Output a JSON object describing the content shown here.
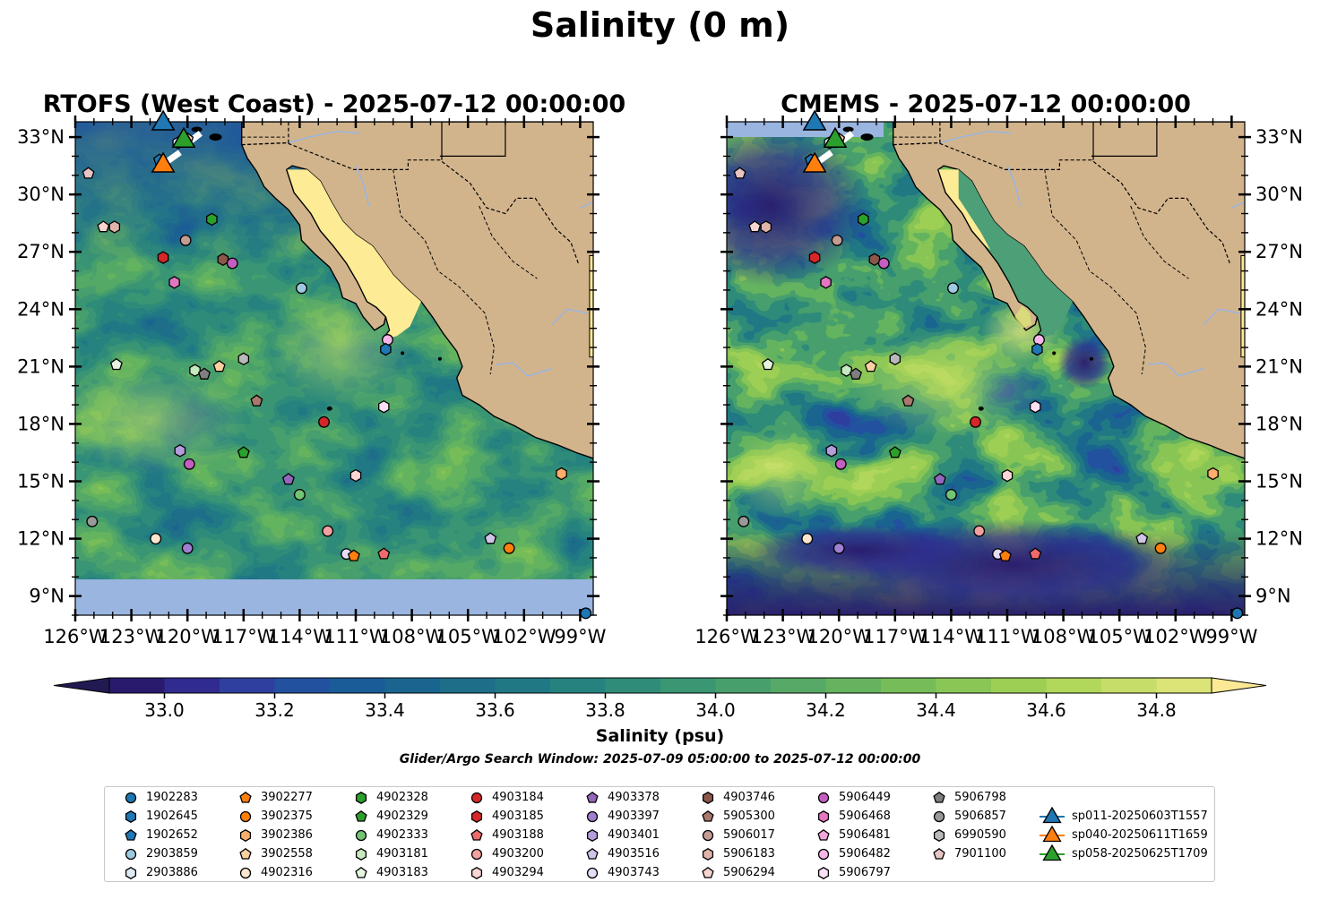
{
  "figure": {
    "suptitle": "Salinity (0 m)",
    "colorbar_label": "Salinity (psu)",
    "search_window": "Glider/Argo Search Window: 2025-07-09 05:00:00 to 2025-07-12 00:00:00"
  },
  "chart_data": [
    {
      "type": "heatmap",
      "title": "RTOFS (West Coast) - 2025-07-12 00:00:00",
      "x_ticks": [
        "126°W",
        "123°W",
        "120°W",
        "117°W",
        "114°W",
        "111°W",
        "108°W",
        "105°W",
        "102°W",
        "99°W"
      ],
      "y_ticks": [
        "9°N",
        "12°N",
        "15°N",
        "18°N",
        "21°N",
        "24°N",
        "27°N",
        "30°N",
        "33°N"
      ],
      "xlim": [
        -126,
        -98.3
      ],
      "ylim": [
        8.0,
        33.8
      ],
      "land_color": "#d2b48c",
      "no_data_color": "#9ab5e0"
    },
    {
      "type": "heatmap",
      "title": "CMEMS - 2025-07-12 00:00:00",
      "x_ticks": [
        "126°W",
        "123°W",
        "120°W",
        "117°W",
        "114°W",
        "111°W",
        "108°W",
        "105°W",
        "102°W",
        "99°W"
      ],
      "y_ticks": [
        "9°N",
        "12°N",
        "15°N",
        "18°N",
        "21°N",
        "24°N",
        "27°N",
        "30°N",
        "33°N"
      ],
      "xlim": [
        -126,
        -98.3
      ],
      "ylim": [
        8.0,
        33.8
      ],
      "land_color": "#d2b48c",
      "no_data_color": "#9ab5e0"
    }
  ],
  "colorbar": {
    "ticks": [
      "33.0",
      "33.2",
      "33.4",
      "33.6",
      "33.8",
      "34.0",
      "34.2",
      "34.4",
      "34.6",
      "34.8"
    ],
    "min": 32.9,
    "max": 34.9,
    "step": 0.1,
    "colors": [
      "#2a1a6e",
      "#302b8e",
      "#2f3f9f",
      "#22519f",
      "#1a5c97",
      "#1a6590",
      "#1e6e8a",
      "#217885",
      "#26827f",
      "#2f8c79",
      "#3a9673",
      "#479f6c",
      "#56a966",
      "#65b35f",
      "#76bd59",
      "#89c656",
      "#9dcf55",
      "#b1d75b",
      "#c6de69",
      "#dbe477"
    ],
    "under_color": "#211a52",
    "over_color": "#fbe995"
  },
  "platforms": [
    {
      "id": "1902283",
      "marker": "circle",
      "color": "#1f77b4"
    },
    {
      "id": "1902645",
      "marker": "hexagon",
      "color": "#1f77b4"
    },
    {
      "id": "1902652",
      "marker": "pentagon",
      "color": "#1f77b4"
    },
    {
      "id": "2903859",
      "marker": "circle",
      "color": "#9ecae1"
    },
    {
      "id": "2903886",
      "marker": "hexagon",
      "color": "#deebf7"
    },
    {
      "id": "3902277",
      "marker": "pentagon",
      "color": "#ff7f0e"
    },
    {
      "id": "3902375",
      "marker": "circle",
      "color": "#ff7f0e"
    },
    {
      "id": "3902386",
      "marker": "hexagon",
      "color": "#fdae6b"
    },
    {
      "id": "3902558",
      "marker": "pentagon",
      "color": "#fdd0a2"
    },
    {
      "id": "4902316",
      "marker": "circle",
      "color": "#fee6ce"
    },
    {
      "id": "4902328",
      "marker": "hexagon",
      "color": "#2ca02c"
    },
    {
      "id": "4902329",
      "marker": "pentagon",
      "color": "#2ca02c"
    },
    {
      "id": "4902333",
      "marker": "circle",
      "color": "#74c476"
    },
    {
      "id": "4903181",
      "marker": "hexagon",
      "color": "#c7e9c0"
    },
    {
      "id": "4903183",
      "marker": "pentagon",
      "color": "#e5f5e0"
    },
    {
      "id": "4903184",
      "marker": "circle",
      "color": "#d62728"
    },
    {
      "id": "4903185",
      "marker": "hexagon",
      "color": "#d62728"
    },
    {
      "id": "4903188",
      "marker": "pentagon",
      "color": "#ef6b6b"
    },
    {
      "id": "4903200",
      "marker": "circle",
      "color": "#f4a0a0"
    },
    {
      "id": "4903294",
      "marker": "hexagon",
      "color": "#fcd5d5"
    },
    {
      "id": "4903378",
      "marker": "pentagon",
      "color": "#9467bd"
    },
    {
      "id": "4903397",
      "marker": "circle",
      "color": "#9e7fd0"
    },
    {
      "id": "4903401",
      "marker": "hexagon",
      "color": "#b39ddb"
    },
    {
      "id": "4903516",
      "marker": "pentagon",
      "color": "#d1c4e9"
    },
    {
      "id": "4903743",
      "marker": "circle",
      "color": "#e6dcf5"
    },
    {
      "id": "4903746",
      "marker": "hexagon",
      "color": "#8c564b"
    },
    {
      "id": "5905300",
      "marker": "pentagon",
      "color": "#a9786e"
    },
    {
      "id": "5906017",
      "marker": "circle",
      "color": "#c49c94"
    },
    {
      "id": "5906183",
      "marker": "hexagon",
      "color": "#e0b4aa"
    },
    {
      "id": "5906294",
      "marker": "pentagon",
      "color": "#f6d6cf"
    },
    {
      "id": "5906449",
      "marker": "circle",
      "color": "#c45ec0"
    },
    {
      "id": "5906468",
      "marker": "hexagon",
      "color": "#e377c2"
    },
    {
      "id": "5906481",
      "marker": "pentagon",
      "color": "#f2a6dd"
    },
    {
      "id": "5906482",
      "marker": "circle",
      "color": "#f7b6e9"
    },
    {
      "id": "5906797",
      "marker": "hexagon",
      "color": "#fde0f4"
    },
    {
      "id": "5906798",
      "marker": "pentagon",
      "color": "#7f7f7f"
    },
    {
      "id": "5906857",
      "marker": "circle",
      "color": "#999999"
    },
    {
      "id": "6990590",
      "marker": "hexagon",
      "color": "#b9b9b9"
    },
    {
      "id": "7901100",
      "marker": "pentagon",
      "color": "#e8c4c4"
    }
  ],
  "gliders": [
    {
      "id": "sp011-20250603T1557",
      "color": "#1f77b4"
    },
    {
      "id": "sp040-20250611T1659",
      "color": "#ff7f0e"
    },
    {
      "id": "sp058-20250625T1709",
      "color": "#2ca02c"
    }
  ],
  "map_platform_positions": [
    {
      "id": "1902652",
      "lon": -121.5,
      "lat": 31.8
    },
    {
      "id": "2903886",
      "lon": -120.5,
      "lat": 32.7
    },
    {
      "id": "3902558",
      "lon": -120.0,
      "lat": 32.9
    },
    {
      "id": "7901100",
      "lon": -125.3,
      "lat": 31.1
    },
    {
      "id": "5906294",
      "lon": -124.5,
      "lat": 28.3
    },
    {
      "id": "5906183",
      "lon": -123.9,
      "lat": 28.3
    },
    {
      "id": "4902328",
      "lon": -118.7,
      "lat": 28.7
    },
    {
      "id": "5906017",
      "lon": -120.1,
      "lat": 27.6
    },
    {
      "id": "4903185",
      "lon": -121.3,
      "lat": 26.7
    },
    {
      "id": "4903746",
      "lon": -118.1,
      "lat": 26.6
    },
    {
      "id": "5906449",
      "lon": -117.6,
      "lat": 26.4
    },
    {
      "id": "5906468",
      "lon": -120.7,
      "lat": 25.4
    },
    {
      "id": "2903859",
      "lon": -113.9,
      "lat": 25.1
    },
    {
      "id": "5906482",
      "lon": -109.3,
      "lat": 22.4
    },
    {
      "id": "1902645",
      "lon": -109.4,
      "lat": 21.9
    },
    {
      "id": "4903183",
      "lon": -123.8,
      "lat": 21.1
    },
    {
      "id": "6990590",
      "lon": -117.0,
      "lat": 21.4
    },
    {
      "id": "3902558",
      "lon": -118.3,
      "lat": 21.0
    },
    {
      "id": "4903181",
      "lon": -119.6,
      "lat": 20.8
    },
    {
      "id": "5906798",
      "lon": -119.1,
      "lat": 20.6
    },
    {
      "id": "5905300",
      "lon": -116.3,
      "lat": 19.2
    },
    {
      "id": "5906797",
      "lon": -109.5,
      "lat": 18.9
    },
    {
      "id": "4903184",
      "lon": -112.7,
      "lat": 18.1
    },
    {
      "id": "4903401",
      "lon": -120.4,
      "lat": 16.6
    },
    {
      "id": "4902329",
      "lon": -117.0,
      "lat": 16.5
    },
    {
      "id": "5906449",
      "lon": -119.9,
      "lat": 15.9
    },
    {
      "id": "4903294",
      "lon": -111.0,
      "lat": 15.3
    },
    {
      "id": "3902386",
      "lon": -100.0,
      "lat": 15.4
    },
    {
      "id": "4903378",
      "lon": -114.6,
      "lat": 15.1
    },
    {
      "id": "4902333",
      "lon": -114.0,
      "lat": 14.3
    },
    {
      "id": "5906857",
      "lon": -125.1,
      "lat": 12.9
    },
    {
      "id": "4903200",
      "lon": -112.5,
      "lat": 12.4
    },
    {
      "id": "4902316",
      "lon": -121.7,
      "lat": 12.0
    },
    {
      "id": "4903516",
      "lon": -103.8,
      "lat": 12.0
    },
    {
      "id": "4903397",
      "lon": -120.0,
      "lat": 11.5
    },
    {
      "id": "3902375",
      "lon": -102.8,
      "lat": 11.5
    },
    {
      "id": "4903743",
      "lon": -111.5,
      "lat": 11.2
    },
    {
      "id": "3902277",
      "lon": -111.1,
      "lat": 11.1
    },
    {
      "id": "4903188",
      "lon": -109.5,
      "lat": 11.2
    },
    {
      "id": "1902283",
      "lon": -98.7,
      "lat": 8.1
    }
  ],
  "map_glider_positions": [
    {
      "id": "sp011-20250603T1557",
      "lon": -121.3,
      "lat": 33.8
    },
    {
      "id": "sp040-20250611T1659",
      "lon": -121.3,
      "lat": 31.6
    },
    {
      "id": "sp058-20250625T1709",
      "lon": -120.2,
      "lat": 32.9
    }
  ]
}
